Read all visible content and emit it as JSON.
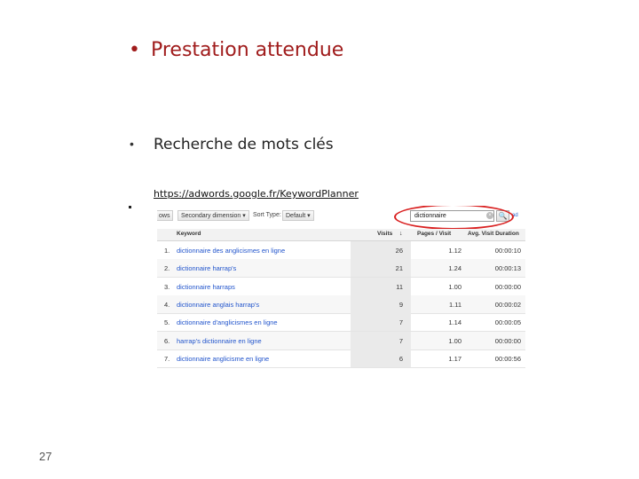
{
  "slide": {
    "title": "Prestation attendue",
    "bullet1": "Recherche de mots clés",
    "url": "https://adwords.google.fr/KeywordPlanner",
    "page_number": "27"
  },
  "toolbar": {
    "views_label": "ows",
    "secondary_dimension": "Secondary dimension ▾",
    "sort_type_label": "Sort Type:",
    "sort_type_value": "Default ▾",
    "search_value": "dictionnaire",
    "clear_glyph": "×",
    "search_glyph": "🔍",
    "advanced_label": "ad"
  },
  "table": {
    "headers": {
      "keyword": "Keyword",
      "visits": "Visits",
      "pages_visit": "Pages / Visit",
      "avg_duration": "Avg. Visit Duration"
    },
    "rows": [
      {
        "n": "1.",
        "keyword": "dictionnaire des anglicismes en ligne",
        "visits": "26",
        "pages": "1.12",
        "duration": "00:00:10"
      },
      {
        "n": "2.",
        "keyword": "dictionnaire harrap's",
        "visits": "21",
        "pages": "1.24",
        "duration": "00:00:13"
      },
      {
        "n": "3.",
        "keyword": "dictionnaire harraps",
        "visits": "11",
        "pages": "1.00",
        "duration": "00:00:00"
      },
      {
        "n": "4.",
        "keyword": "dictionnaire anglais harrap's",
        "visits": "9",
        "pages": "1.11",
        "duration": "00:00:02"
      },
      {
        "n": "5.",
        "keyword": "dictionnaire d'anglicismes en ligne",
        "visits": "7",
        "pages": "1.14",
        "duration": "00:00:05"
      },
      {
        "n": "6.",
        "keyword": "harrap's dictionnaire en ligne",
        "visits": "7",
        "pages": "1.00",
        "duration": "00:00:00"
      },
      {
        "n": "7.",
        "keyword": "dictionnaire anglicisme en ligne",
        "visits": "6",
        "pages": "1.17",
        "duration": "00:00:56"
      }
    ]
  }
}
